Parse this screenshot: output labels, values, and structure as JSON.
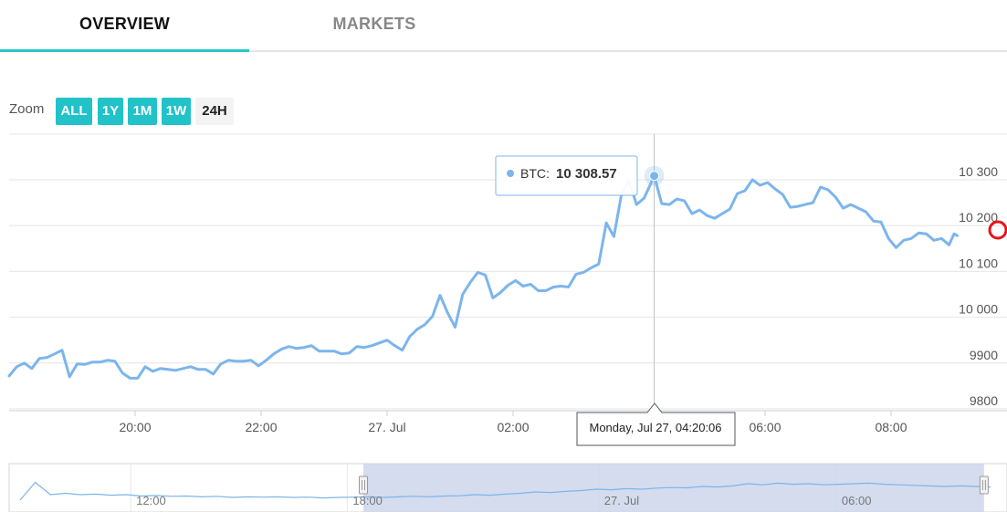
{
  "tabs": [
    {
      "label": "OVERVIEW",
      "active": true
    },
    {
      "label": "MARKETS",
      "active": false
    }
  ],
  "zoom": {
    "label": "Zoom",
    "buttons": [
      {
        "label": "ALL",
        "selected": true
      },
      {
        "label": "1Y",
        "selected": true
      },
      {
        "label": "1M",
        "selected": true
      },
      {
        "label": "1W",
        "selected": true
      },
      {
        "label": "24H",
        "selected": false
      }
    ]
  },
  "colors": {
    "accent": "#22c2c9",
    "line": "#7cb5ec",
    "navigator_mask": "#ccd6eb"
  },
  "tooltip": {
    "series": "BTC",
    "value": "10 308.57",
    "date_label": "Monday, Jul 27, 04:20:06"
  },
  "chart_data": {
    "type": "line",
    "series": [
      {
        "name": "BTC",
        "unit": "USD"
      }
    ],
    "x_unit": "hours since 20:00 on 26 Jul",
    "ylim": [
      9800,
      10330
    ],
    "xlim": [
      -2,
      13.05
    ],
    "y_ticks": [
      {
        "value": 9800,
        "label": "9800"
      },
      {
        "value": 9900,
        "label": "9900"
      },
      {
        "value": 10000,
        "label": "10 000"
      },
      {
        "value": 10100,
        "label": "10 100"
      },
      {
        "value": 10200,
        "label": "10 200"
      },
      {
        "value": 10300,
        "label": "10 300"
      }
    ],
    "x_ticks": [
      {
        "t": 0,
        "label": "20:00"
      },
      {
        "t": 2,
        "label": "22:00"
      },
      {
        "t": 4,
        "label": "27. Jul"
      },
      {
        "t": 6,
        "label": "02:00"
      },
      {
        "t": 10,
        "label": "06:00"
      },
      {
        "t": 12,
        "label": "08:00"
      }
    ],
    "grid": true,
    "points": [
      [
        -2.0,
        9872
      ],
      [
        -1.88,
        9892
      ],
      [
        -1.76,
        9900
      ],
      [
        -1.64,
        9888
      ],
      [
        -1.52,
        9910
      ],
      [
        -1.4,
        9912
      ],
      [
        -1.28,
        9920
      ],
      [
        -1.16,
        9928
      ],
      [
        -1.04,
        9870
      ],
      [
        -0.92,
        9898
      ],
      [
        -0.8,
        9897
      ],
      [
        -0.68,
        9902
      ],
      [
        -0.56,
        9902
      ],
      [
        -0.44,
        9906
      ],
      [
        -0.32,
        9904
      ],
      [
        -0.2,
        9878
      ],
      [
        -0.08,
        9867
      ],
      [
        0.04,
        9867
      ],
      [
        0.16,
        9892
      ],
      [
        0.28,
        9882
      ],
      [
        0.4,
        9888
      ],
      [
        0.52,
        9886
      ],
      [
        0.64,
        9884
      ],
      [
        0.76,
        9888
      ],
      [
        0.88,
        9892
      ],
      [
        1.0,
        9886
      ],
      [
        1.12,
        9886
      ],
      [
        1.24,
        9876
      ],
      [
        1.36,
        9898
      ],
      [
        1.48,
        9906
      ],
      [
        1.6,
        9904
      ],
      [
        1.72,
        9904
      ],
      [
        1.84,
        9906
      ],
      [
        1.96,
        9894
      ],
      [
        2.08,
        9906
      ],
      [
        2.2,
        9920
      ],
      [
        2.32,
        9930
      ],
      [
        2.44,
        9936
      ],
      [
        2.56,
        9932
      ],
      [
        2.68,
        9934
      ],
      [
        2.8,
        9938
      ],
      [
        2.92,
        9926
      ],
      [
        3.04,
        9926
      ],
      [
        3.16,
        9926
      ],
      [
        3.28,
        9920
      ],
      [
        3.4,
        9922
      ],
      [
        3.52,
        9936
      ],
      [
        3.64,
        9934
      ],
      [
        3.76,
        9938
      ],
      [
        3.88,
        9944
      ],
      [
        4.0,
        9950
      ],
      [
        4.12,
        9938
      ],
      [
        4.24,
        9928
      ],
      [
        4.36,
        9958
      ],
      [
        4.48,
        9974
      ],
      [
        4.6,
        9984
      ],
      [
        4.72,
        10002
      ],
      [
        4.84,
        10048
      ],
      [
        4.96,
        10010
      ],
      [
        5.08,
        9978
      ],
      [
        5.2,
        10050
      ],
      [
        5.32,
        10076
      ],
      [
        5.44,
        10098
      ],
      [
        5.56,
        10092
      ],
      [
        5.68,
        10042
      ],
      [
        5.8,
        10054
      ],
      [
        5.92,
        10070
      ],
      [
        6.04,
        10080
      ],
      [
        6.16,
        10068
      ],
      [
        6.28,
        10072
      ],
      [
        6.4,
        10058
      ],
      [
        6.52,
        10058
      ],
      [
        6.64,
        10066
      ],
      [
        6.76,
        10068
      ],
      [
        6.88,
        10066
      ],
      [
        7.0,
        10094
      ],
      [
        7.12,
        10098
      ],
      [
        7.24,
        10108
      ],
      [
        7.36,
        10116
      ],
      [
        7.48,
        10206
      ],
      [
        7.6,
        10176
      ],
      [
        7.72,
        10268
      ],
      [
        7.84,
        10298
      ],
      [
        7.96,
        10246
      ],
      [
        8.08,
        10260
      ],
      [
        8.24,
        10308.57
      ],
      [
        8.36,
        10248
      ],
      [
        8.48,
        10246
      ],
      [
        8.6,
        10258
      ],
      [
        8.72,
        10254
      ],
      [
        8.84,
        10226
      ],
      [
        8.96,
        10234
      ],
      [
        9.08,
        10222
      ],
      [
        9.2,
        10216
      ],
      [
        9.32,
        10226
      ],
      [
        9.44,
        10236
      ],
      [
        9.56,
        10270
      ],
      [
        9.68,
        10276
      ],
      [
        9.8,
        10300
      ],
      [
        9.92,
        10288
      ],
      [
        10.04,
        10294
      ],
      [
        10.16,
        10280
      ],
      [
        10.28,
        10268
      ],
      [
        10.4,
        10240
      ],
      [
        10.52,
        10242
      ],
      [
        10.64,
        10246
      ],
      [
        10.76,
        10250
      ],
      [
        10.88,
        10284
      ],
      [
        11.0,
        10278
      ],
      [
        11.12,
        10262
      ],
      [
        11.24,
        10238
      ],
      [
        11.36,
        10246
      ],
      [
        11.48,
        10238
      ],
      [
        11.6,
        10230
      ],
      [
        11.72,
        10210
      ],
      [
        11.84,
        10208
      ],
      [
        11.96,
        10172
      ],
      [
        12.08,
        10152
      ],
      [
        12.2,
        10168
      ],
      [
        12.32,
        10172
      ],
      [
        12.44,
        10184
      ],
      [
        12.56,
        10182
      ],
      [
        12.68,
        10168
      ],
      [
        12.8,
        10172
      ],
      [
        12.92,
        10158
      ],
      [
        13.0,
        10182
      ],
      [
        13.05,
        10178
      ]
    ],
    "highlight": {
      "t": 8.24,
      "value": 10308.57
    },
    "navigator": {
      "x_ticks": [
        {
          "pos": 0.131,
          "label": "12:00"
        },
        {
          "pos": 0.348,
          "label": "18:00"
        },
        {
          "pos": 0.6,
          "label": "27. Jul"
        },
        {
          "pos": 0.838,
          "label": "06:00"
        }
      ],
      "selected_range": [
        0.355,
        0.977
      ],
      "values": [
        0.1,
        0.75,
        0.3,
        0.35,
        0.3,
        0.32,
        0.28,
        0.3,
        0.25,
        0.27,
        0.24,
        0.25,
        0.22,
        0.24,
        0.2,
        0.22,
        0.21,
        0.22,
        0.2,
        0.21,
        0.18,
        0.2,
        0.21,
        0.22,
        0.2,
        0.22,
        0.24,
        0.22,
        0.25,
        0.26,
        0.3,
        0.28,
        0.32,
        0.35,
        0.4,
        0.38,
        0.42,
        0.45,
        0.5,
        0.48,
        0.52,
        0.5,
        0.54,
        0.56,
        0.55,
        0.6,
        0.58,
        0.62,
        0.7,
        0.66,
        0.72,
        0.68,
        0.7,
        0.66,
        0.68,
        0.7,
        0.72,
        0.68,
        0.66,
        0.64,
        0.62,
        0.6,
        0.62,
        0.6,
        0.58
      ]
    }
  }
}
